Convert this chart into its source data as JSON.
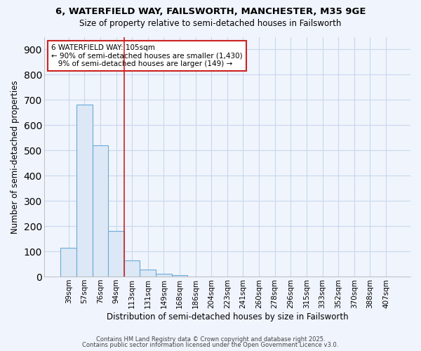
{
  "title_line1": "6, WATERFIELD WAY, FAILSWORTH, MANCHESTER, M35 9GE",
  "title_line2": "Size of property relative to semi-detached houses in Failsworth",
  "xlabel": "Distribution of semi-detached houses by size in Failsworth",
  "ylabel": "Number of semi-detached properties",
  "categories": [
    "39sqm",
    "57sqm",
    "76sqm",
    "94sqm",
    "113sqm",
    "131sqm",
    "149sqm",
    "168sqm",
    "186sqm",
    "204sqm",
    "223sqm",
    "241sqm",
    "260sqm",
    "278sqm",
    "296sqm",
    "315sqm",
    "333sqm",
    "352sqm",
    "370sqm",
    "388sqm",
    "407sqm"
  ],
  "values": [
    113,
    681,
    519,
    181,
    63,
    27,
    11,
    5,
    0,
    0,
    0,
    0,
    0,
    0,
    0,
    0,
    0,
    0,
    0,
    0,
    0
  ],
  "bar_color": "#dce8f5",
  "bar_edge_color": "#6aabda",
  "grid_color": "#c8d8ee",
  "background_color": "#f0f4fc",
  "plot_bg_color": "#f0f4fc",
  "annotation_text": "6 WATERFIELD WAY: 105sqm\n← 90% of semi-detached houses are smaller (1,430)\n   9% of semi-detached houses are larger (149) →",
  "annotation_box_color": "#ffffff",
  "annotation_box_edge_color": "#cc2222",
  "property_line_index": 4,
  "property_line_color": "#cc2222",
  "ylim": [
    0,
    950
  ],
  "yticks": [
    0,
    100,
    200,
    300,
    400,
    500,
    600,
    700,
    800,
    900
  ],
  "footer_line1": "Contains HM Land Registry data © Crown copyright and database right 2025.",
  "footer_line2": "Contains public sector information licensed under the Open Government Licence v3.0."
}
